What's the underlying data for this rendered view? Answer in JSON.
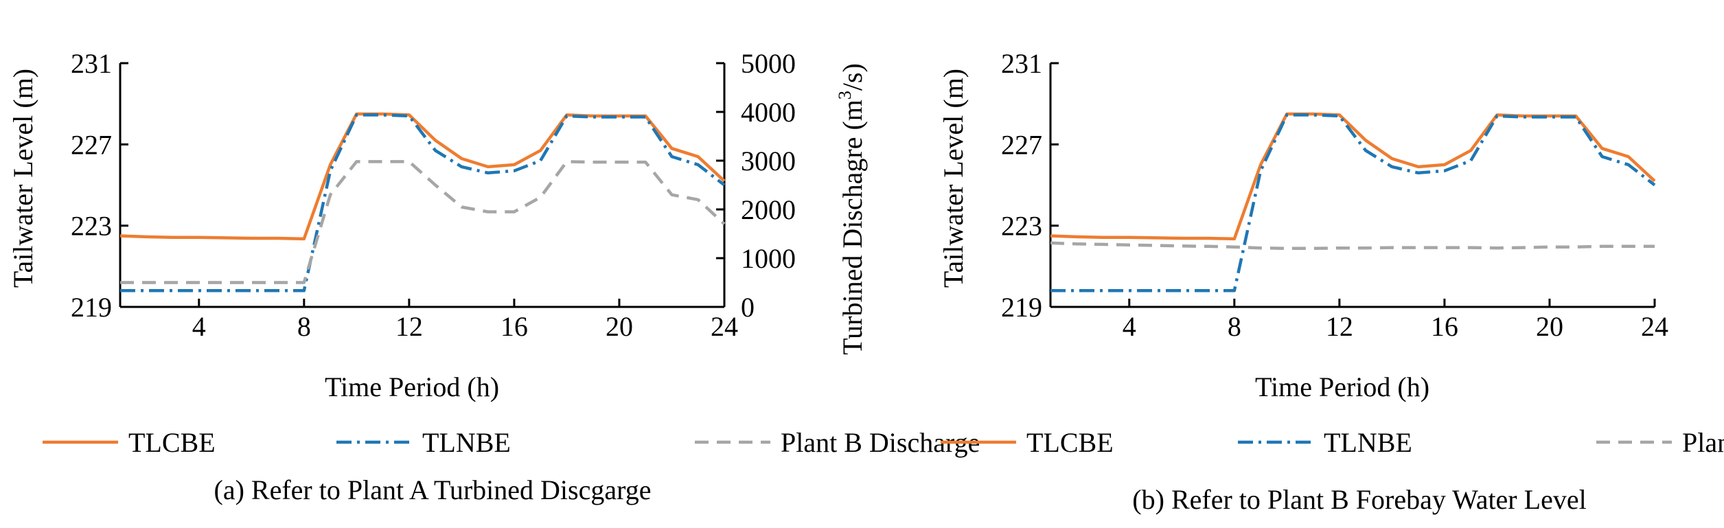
{
  "chart_data": [
    {
      "type": "line",
      "caption": "(a) Refer to Plant A Turbined Discgarge",
      "xlabel": "Time Period (h)",
      "ylabel": "Tailwater Level (m)",
      "y2label_main": "Turbined Dischagre (m",
      "y2label_sup": "3",
      "y2label_tail": "/s)",
      "xlim": [
        1,
        24
      ],
      "ylim": [
        219,
        231
      ],
      "y2lim": [
        0,
        5000
      ],
      "xticks": [
        4,
        8,
        12,
        16,
        20,
        24
      ],
      "yticks": [
        219,
        223,
        227,
        231
      ],
      "y2ticks": [
        0,
        1000,
        2000,
        3000,
        4000,
        5000
      ],
      "x": [
        1,
        2,
        3,
        4,
        5,
        6,
        7,
        8,
        9,
        10,
        11,
        12,
        13,
        14,
        15,
        16,
        17,
        18,
        19,
        20,
        21,
        22,
        23,
        24
      ],
      "series": [
        {
          "name": "TLCBE",
          "axis": "left",
          "color": "#ED7D31",
          "dash": "solid",
          "values": [
            222.5,
            222.45,
            222.42,
            222.42,
            222.4,
            222.38,
            222.38,
            222.35,
            226.0,
            228.5,
            228.5,
            228.45,
            227.2,
            226.3,
            225.9,
            226.0,
            226.7,
            228.45,
            228.4,
            228.4,
            228.4,
            226.8,
            226.4,
            225.2
          ]
        },
        {
          "name": "TLNBE",
          "axis": "left",
          "color": "#1F77B4",
          "dash": "dashdot",
          "values": [
            219.8,
            219.8,
            219.8,
            219.8,
            219.8,
            219.8,
            219.8,
            219.8,
            225.7,
            228.45,
            228.45,
            228.4,
            226.7,
            225.9,
            225.6,
            225.7,
            226.2,
            228.4,
            228.35,
            228.35,
            228.35,
            226.4,
            226.0,
            225.0
          ]
        },
        {
          "name": "Plant B Discharge",
          "axis": "right",
          "color": "#A6A6A6",
          "dash": "dashed",
          "values": [
            500,
            500,
            500,
            500,
            500,
            500,
            500,
            500,
            2300,
            2980,
            2980,
            2980,
            2500,
            2050,
            1950,
            1950,
            2250,
            2980,
            2970,
            2970,
            2970,
            2300,
            2200,
            1700
          ]
        }
      ],
      "legend_position": "bottom"
    },
    {
      "type": "line",
      "caption": "(b) Refer to Plant B Forebay Water Level",
      "xlabel": "Time Period (h)",
      "ylabel": "Tailwater Level (m)",
      "xlim": [
        1,
        24
      ],
      "ylim": [
        219,
        231
      ],
      "xticks": [
        4,
        8,
        12,
        16,
        20,
        24
      ],
      "yticks": [
        219,
        223,
        227,
        231
      ],
      "x": [
        1,
        2,
        3,
        4,
        5,
        6,
        7,
        8,
        9,
        10,
        11,
        12,
        13,
        14,
        15,
        16,
        17,
        18,
        19,
        20,
        21,
        22,
        23,
        24
      ],
      "series": [
        {
          "name": "TLCBE",
          "axis": "left",
          "color": "#ED7D31",
          "dash": "solid",
          "values": [
            222.5,
            222.45,
            222.42,
            222.42,
            222.4,
            222.38,
            222.38,
            222.35,
            226.0,
            228.5,
            228.5,
            228.45,
            227.2,
            226.3,
            225.9,
            226.0,
            226.7,
            228.45,
            228.4,
            228.4,
            228.4,
            226.8,
            226.4,
            225.2
          ]
        },
        {
          "name": "TLNBE",
          "axis": "left",
          "color": "#1F77B4",
          "dash": "dashdot",
          "values": [
            219.8,
            219.8,
            219.8,
            219.8,
            219.8,
            219.8,
            219.8,
            219.8,
            225.7,
            228.45,
            228.45,
            228.4,
            226.7,
            225.9,
            225.6,
            225.7,
            226.2,
            228.4,
            228.35,
            228.35,
            228.35,
            226.4,
            226.0,
            225.0
          ]
        },
        {
          "name": "Plant B Water Level",
          "axis": "left",
          "color": "#A6A6A6",
          "dash": "dashed",
          "values": [
            222.15,
            222.1,
            222.08,
            222.05,
            222.03,
            222.0,
            221.98,
            221.95,
            221.9,
            221.88,
            221.88,
            221.9,
            221.9,
            221.92,
            221.92,
            221.92,
            221.92,
            221.9,
            221.92,
            221.95,
            221.95,
            221.98,
            221.98,
            221.98
          ]
        }
      ],
      "legend_position": "bottom"
    }
  ]
}
